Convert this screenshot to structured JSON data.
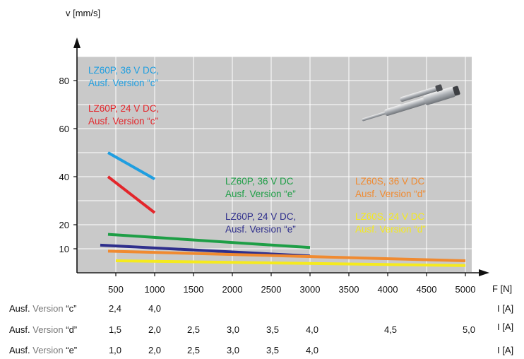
{
  "chart_data": {
    "type": "line",
    "ylabel": "v [mm/s]",
    "xlabel": "F [N]",
    "xlim": [
      0,
      5000
    ],
    "ylim": [
      0,
      90
    ],
    "x_ticks": [
      500,
      1000,
      1500,
      2000,
      2500,
      3000,
      3500,
      4000,
      4500,
      5000
    ],
    "y_ticks": [
      10,
      20,
      40,
      60,
      80
    ],
    "grid": true,
    "series": [
      {
        "name": "LZ60P, 36 V DC, Ausf. Version \"c\"",
        "label_lines": [
          "LZ60P, 36 V DC,",
          "Ausf. Version “c”"
        ],
        "color": "#1f9ee0",
        "x": [
          400,
          1000
        ],
        "y": [
          50,
          39
        ]
      },
      {
        "name": "LZ60P, 24 V DC, Ausf. Version \"c\"",
        "label_lines": [
          "LZ60P, 24 V DC,",
          "Ausf. Version “c”"
        ],
        "color": "#e3262b",
        "x": [
          400,
          1000
        ],
        "y": [
          40,
          25
        ]
      },
      {
        "name": "LZ60P, 36 V DC Ausf. Version \"e\"",
        "label_lines": [
          "LZ60P, 36 V DC",
          "Ausf. Version “e”"
        ],
        "color": "#1e9e46",
        "x": [
          400,
          3000
        ],
        "y": [
          16,
          10.5
        ]
      },
      {
        "name": "LZ60P, 24 V DC, Ausf. Version \"e\"",
        "label_lines": [
          "LZ60P, 24 V DC,",
          "Ausf. Version “e”"
        ],
        "color": "#2e2e8c",
        "x": [
          300,
          3000
        ],
        "y": [
          11.5,
          7
        ]
      },
      {
        "name": "LZ60S, 36 V DC Ausf. Version \"d\"",
        "label_lines": [
          "LZ60S, 36 V DC",
          "Ausf. Version “d”"
        ],
        "color": "#f08a30",
        "x": [
          400,
          5000
        ],
        "y": [
          9,
          5
        ]
      },
      {
        "name": "LZ60S, 24 V DC Ausf. Version \"d\"",
        "label_lines": [
          "LZ60S, 24 V DC",
          "Ausf. Version “d”"
        ],
        "color": "#f5ea1e",
        "x": [
          500,
          5000
        ],
        "y": [
          5,
          3
        ]
      }
    ],
    "current_table": {
      "unit": "I [A]",
      "rows": [
        {
          "prefix": "Ausf.",
          "mid": "Version",
          "code": "“c”",
          "values": [
            "2,4",
            "4,0"
          ]
        },
        {
          "prefix": "Ausf.",
          "mid": "Version",
          "code": "“d”",
          "values": [
            "1,5",
            "2,0",
            "2,5",
            "3,0",
            "3,5",
            "4,0",
            "4,5",
            "5,0"
          ]
        },
        {
          "prefix": "Ausf.",
          "mid": "Version",
          "code": "“e”",
          "values": [
            "1,0",
            "2,0",
            "2,5",
            "3,0",
            "3,5",
            "4,0"
          ]
        }
      ]
    }
  }
}
